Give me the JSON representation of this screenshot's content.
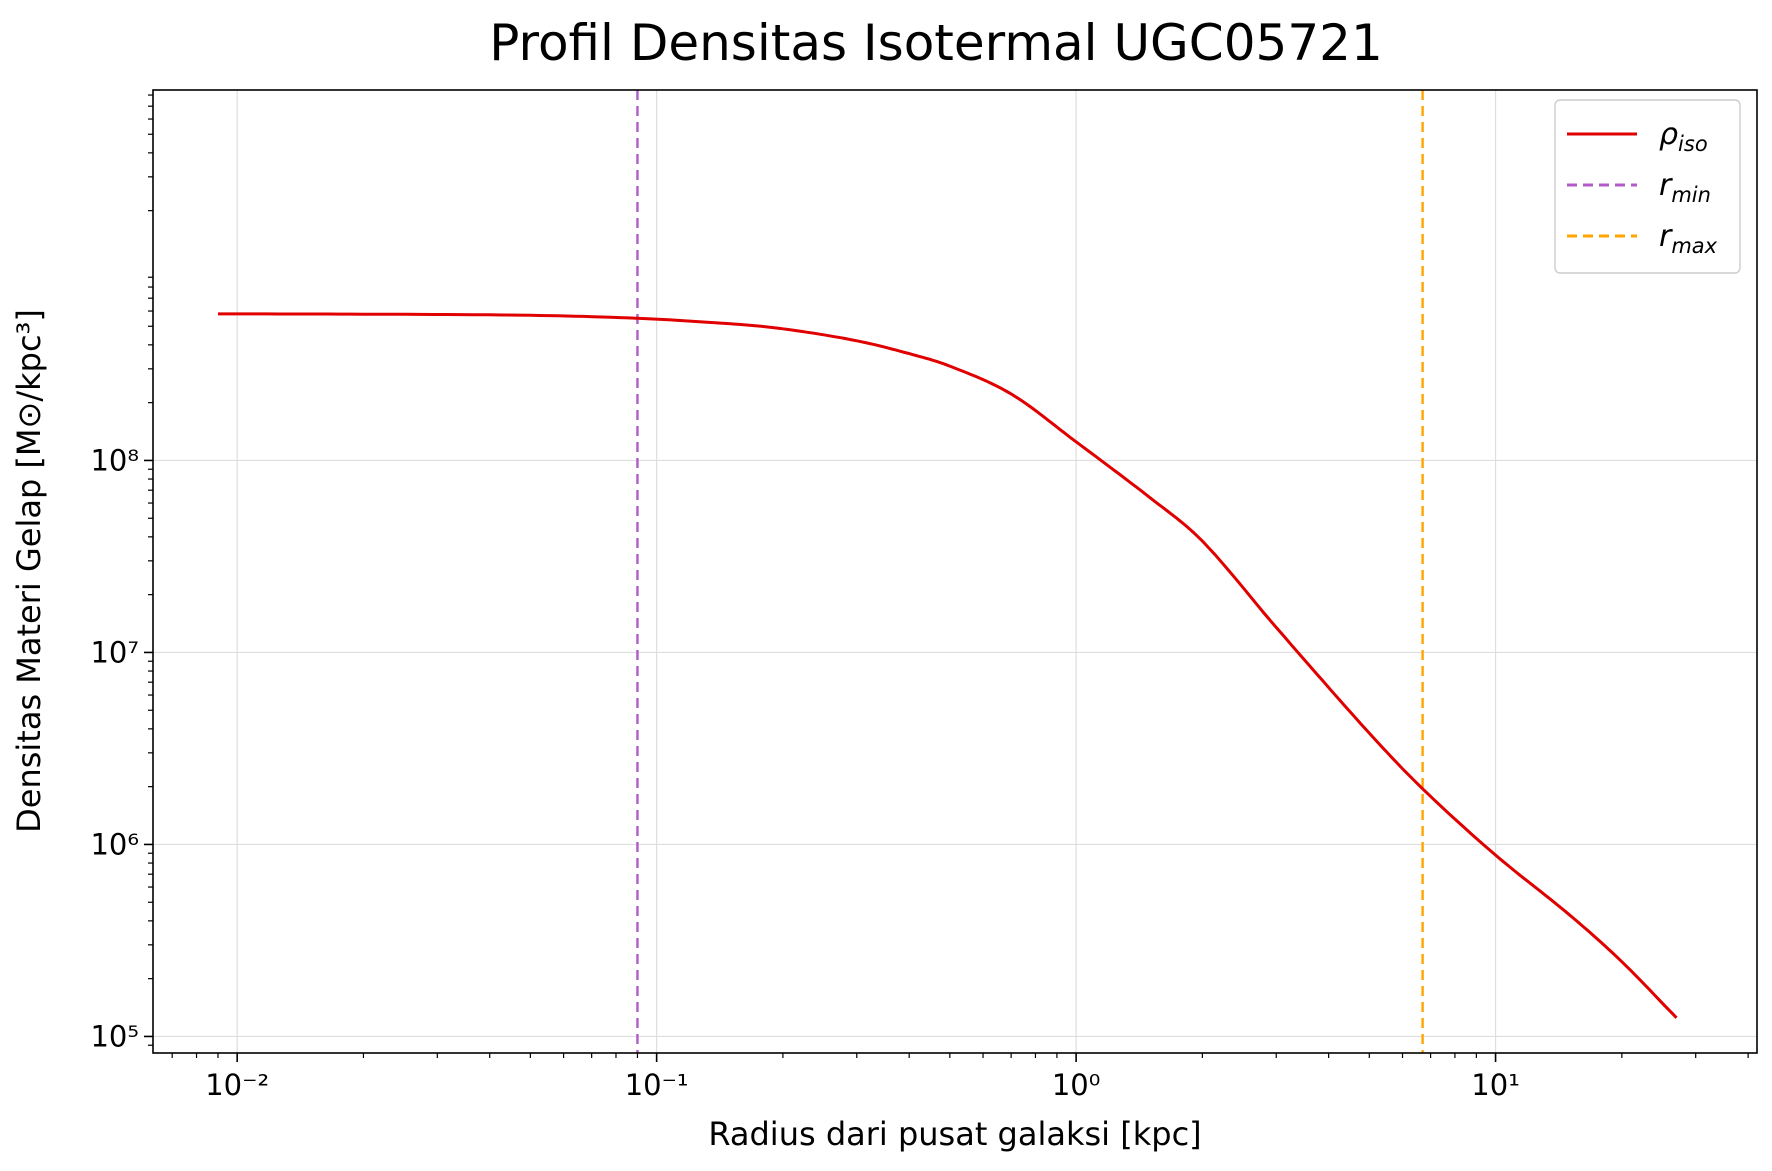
{
  "chart_data": {
    "type": "line",
    "title": "Profil Densitas Isotermal UGC05721",
    "xlabel": "Radius dari pusat galaksi [kpc]",
    "ylabel": "Densitas Materi Gelap [M⊙/kpc³]",
    "xscale": "log",
    "yscale": "log",
    "xlim": [
      0.0063,
      42
    ],
    "ylim": [
      82000,
      8500000000
    ],
    "grid": true,
    "legend_position": "top-right",
    "x_ticks": [
      {
        "value": 0.01,
        "label": "10⁻²"
      },
      {
        "value": 0.1,
        "label": "10⁻¹"
      },
      {
        "value": 1,
        "label": "10⁰"
      },
      {
        "value": 10,
        "label": "10¹"
      }
    ],
    "y_ticks": [
      {
        "value": 100000,
        "label": "10⁵"
      },
      {
        "value": 1000000,
        "label": "10⁶"
      },
      {
        "value": 10000000,
        "label": "10⁷"
      },
      {
        "value": 100000000,
        "label": "10⁸"
      }
    ],
    "series": [
      {
        "name": "ρiso",
        "legend_main": "ρ",
        "legend_sub": "iso",
        "color": "#e00000",
        "style": "solid",
        "x": [
          0.009,
          0.02,
          0.05,
          0.09,
          0.15,
          0.2,
          0.3,
          0.4,
          0.5,
          0.7,
          1.0,
          1.5,
          2.0,
          3.0,
          5.0,
          6.7,
          10,
          15,
          20,
          27
        ],
        "y": [
          580000000,
          578000000,
          570000000,
          550000000,
          515000000,
          485000000,
          420000000,
          360000000,
          310000000,
          222000000,
          125000000,
          64000000,
          38000000,
          13500000,
          3800000,
          1950000,
          880000,
          430000,
          245000,
          125000
        ]
      }
    ],
    "vlines": [
      {
        "name": "rmin",
        "legend_main": "r",
        "legend_sub": "min",
        "x": 0.09,
        "color": "#b05cc8",
        "style": "dashed"
      },
      {
        "name": "rmax",
        "legend_main": "r",
        "legend_sub": "max",
        "x": 6.7,
        "color": "#ffa500",
        "style": "dashed"
      }
    ]
  }
}
